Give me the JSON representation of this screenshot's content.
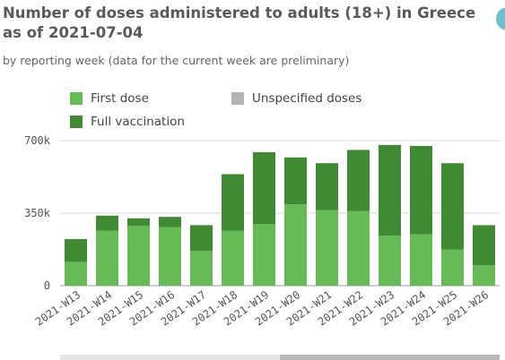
{
  "chart_data": {
    "type": "bar",
    "stacked": true,
    "title": "Number of doses administered to adults (18+) in Greece as of 2021-07-04",
    "subtitle": "by reporting week (data for the current week are preliminary)",
    "categories": [
      "2021-W13",
      "2021-W14",
      "2021-W15",
      "2021-W16",
      "2021-W17",
      "2021-W18",
      "2021-W19",
      "2021-W20",
      "2021-W21",
      "2021-W22",
      "2021-W23",
      "2021-W24",
      "2021-W25",
      "2021-W26"
    ],
    "series": [
      {
        "name": "First dose",
        "color": "#66bb55",
        "values": [
          115000,
          265000,
          288000,
          283000,
          168000,
          265000,
          298000,
          392000,
          365000,
          360000,
          242000,
          248000,
          175000,
          98000
        ]
      },
      {
        "name": "Full vaccination",
        "color": "#3f8a32",
        "values": [
          110000,
          73000,
          37000,
          49000,
          124000,
          273000,
          346000,
          227000,
          226000,
          295000,
          437000,
          426000,
          416000,
          194000
        ]
      },
      {
        "name": "Unspecified doses",
        "color": "#b3b3b3",
        "values": [
          0,
          0,
          0,
          0,
          0,
          0,
          0,
          0,
          0,
          0,
          0,
          0,
          0,
          0
        ]
      }
    ],
    "ylim": [
      0,
      700000
    ],
    "yticks": [
      {
        "value": 0,
        "label": "0"
      },
      {
        "value": 350000,
        "label": "350k"
      },
      {
        "value": 700000,
        "label": "700k"
      }
    ],
    "grid": true,
    "legend_position": "top-left",
    "xlabel": "",
    "ylabel": ""
  }
}
